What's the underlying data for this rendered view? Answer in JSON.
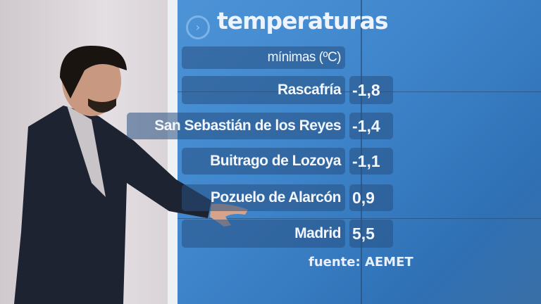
{
  "graphic": {
    "title": "temperaturas",
    "subtitle": "mínimas (ºC)",
    "rows": [
      {
        "place": "Rascafría",
        "value": "-1,8"
      },
      {
        "place": "San Sebastián de los Reyes",
        "value": "-1,4"
      },
      {
        "place": "Buitrago de Lozoya",
        "value": "-1,1"
      },
      {
        "place": "Pozuelo de Alarcón",
        "value": "0,9"
      },
      {
        "place": "Madrid",
        "value": "5,5"
      }
    ],
    "source": "fuente: AEMET"
  }
}
